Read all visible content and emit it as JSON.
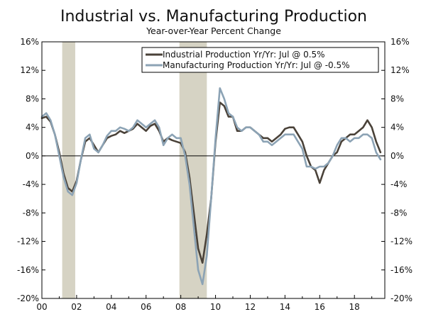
{
  "chart_data": {
    "type": "line",
    "title": "Industrial vs. Manufacturing Production",
    "subtitle": "Year-over-Year Percent Change",
    "xlabel": "",
    "ylabel": "",
    "x_range": [
      2000,
      2019.75
    ],
    "ylim": [
      -20,
      16
    ],
    "y_ticks": [
      16,
      12,
      8,
      4,
      0,
      -4,
      -8,
      -12,
      -16,
      -20
    ],
    "y_tick_labels": [
      "16%",
      "12%",
      "8%",
      "4%",
      "0%",
      "-4%",
      "-8%",
      "-12%",
      "-16%",
      "-20%"
    ],
    "x_ticks": [
      2000,
      2002,
      2004,
      2006,
      2008,
      2010,
      2012,
      2014,
      2016,
      2018
    ],
    "x_tick_labels": [
      "00",
      "02",
      "04",
      "06",
      "08",
      "10",
      "12",
      "14",
      "16",
      "18"
    ],
    "recessions": [
      [
        2001.17,
        2001.92
      ],
      [
        2007.92,
        2009.5
      ]
    ],
    "legend": {
      "position": "top-right"
    },
    "series": [
      {
        "name": "Industrial Production Yr/Yr: Jul @ 0.5%",
        "color": "#4a4239",
        "x": [
          2000.0,
          2000.25,
          2000.5,
          2000.75,
          2001.0,
          2001.25,
          2001.5,
          2001.75,
          2002.0,
          2002.25,
          2002.5,
          2002.75,
          2003.0,
          2003.25,
          2003.5,
          2003.75,
          2004.0,
          2004.25,
          2004.5,
          2004.75,
          2005.0,
          2005.25,
          2005.5,
          2005.75,
          2006.0,
          2006.25,
          2006.5,
          2006.75,
          2007.0,
          2007.25,
          2007.5,
          2007.75,
          2008.0,
          2008.25,
          2008.5,
          2008.75,
          2009.0,
          2009.25,
          2009.5,
          2009.75,
          2010.0,
          2010.25,
          2010.5,
          2010.75,
          2011.0,
          2011.25,
          2011.5,
          2011.75,
          2012.0,
          2012.25,
          2012.5,
          2012.75,
          2013.0,
          2013.25,
          2013.5,
          2013.75,
          2014.0,
          2014.25,
          2014.5,
          2014.75,
          2015.0,
          2015.25,
          2015.5,
          2015.75,
          2016.0,
          2016.25,
          2016.5,
          2016.75,
          2017.0,
          2017.25,
          2017.5,
          2017.75,
          2018.0,
          2018.25,
          2018.5,
          2018.75,
          2019.0,
          2019.25,
          2019.5
        ],
        "y": [
          5.3,
          5.5,
          4.8,
          3.0,
          0.5,
          -2.5,
          -4.5,
          -5.0,
          -3.5,
          -0.5,
          2.0,
          2.5,
          1.5,
          0.5,
          1.5,
          2.5,
          2.8,
          3.0,
          3.5,
          3.2,
          3.5,
          3.8,
          4.5,
          4.0,
          3.5,
          4.2,
          4.5,
          3.5,
          2.0,
          2.5,
          2.2,
          2.0,
          1.8,
          0.5,
          -3.0,
          -8.0,
          -13.0,
          -15.0,
          -11.0,
          -6.0,
          2.0,
          7.5,
          7.0,
          5.5,
          5.5,
          3.5,
          3.5,
          4.0,
          4.0,
          3.5,
          3.0,
          2.5,
          2.5,
          2.0,
          2.5,
          3.0,
          3.8,
          4.0,
          4.0,
          3.0,
          2.0,
          0.0,
          -1.5,
          -2.0,
          -3.8,
          -2.0,
          -1.0,
          0.0,
          0.5,
          2.0,
          2.5,
          3.0,
          3.0,
          3.5,
          4.0,
          5.0,
          4.0,
          2.0,
          0.5
        ]
      },
      {
        "name": "Manufacturing Production Yr/Yr: Jul @ -0.5%",
        "color": "#8ca3b5",
        "x": [
          2000.0,
          2000.25,
          2000.5,
          2000.75,
          2001.0,
          2001.25,
          2001.5,
          2001.75,
          2002.0,
          2002.25,
          2002.5,
          2002.75,
          2003.0,
          2003.25,
          2003.5,
          2003.75,
          2004.0,
          2004.25,
          2004.5,
          2004.75,
          2005.0,
          2005.25,
          2005.5,
          2005.75,
          2006.0,
          2006.25,
          2006.5,
          2006.75,
          2007.0,
          2007.25,
          2007.5,
          2007.75,
          2008.0,
          2008.25,
          2008.5,
          2008.75,
          2009.0,
          2009.25,
          2009.5,
          2009.75,
          2010.0,
          2010.25,
          2010.5,
          2010.75,
          2011.0,
          2011.25,
          2011.5,
          2011.75,
          2012.0,
          2012.25,
          2012.5,
          2012.75,
          2013.0,
          2013.25,
          2013.5,
          2013.75,
          2014.0,
          2014.25,
          2014.5,
          2014.75,
          2015.0,
          2015.25,
          2015.5,
          2015.75,
          2016.0,
          2016.25,
          2016.5,
          2016.75,
          2017.0,
          2017.25,
          2017.5,
          2017.75,
          2018.0,
          2018.25,
          2018.5,
          2018.75,
          2019.0,
          2019.25,
          2019.5
        ],
        "y": [
          5.5,
          6.0,
          5.0,
          3.0,
          0.0,
          -3.0,
          -5.0,
          -5.5,
          -3.8,
          -0.5,
          2.5,
          3.0,
          1.0,
          0.5,
          1.5,
          2.8,
          3.5,
          3.5,
          4.0,
          3.8,
          3.5,
          4.0,
          5.0,
          4.5,
          4.0,
          4.5,
          5.0,
          4.0,
          1.5,
          2.5,
          3.0,
          2.5,
          2.5,
          0.0,
          -4.0,
          -10.0,
          -16.0,
          -18.0,
          -14.0,
          -6.0,
          2.5,
          9.5,
          8.0,
          6.0,
          5.5,
          4.0,
          3.5,
          4.0,
          4.0,
          3.5,
          3.0,
          2.0,
          2.0,
          1.5,
          2.0,
          2.5,
          3.0,
          3.0,
          3.0,
          2.0,
          1.0,
          -1.5,
          -1.5,
          -1.8,
          -1.5,
          -1.5,
          -1.0,
          0.0,
          1.5,
          2.5,
          2.5,
          2.0,
          2.5,
          2.5,
          3.0,
          3.0,
          2.5,
          0.5,
          -0.5
        ]
      }
    ]
  }
}
